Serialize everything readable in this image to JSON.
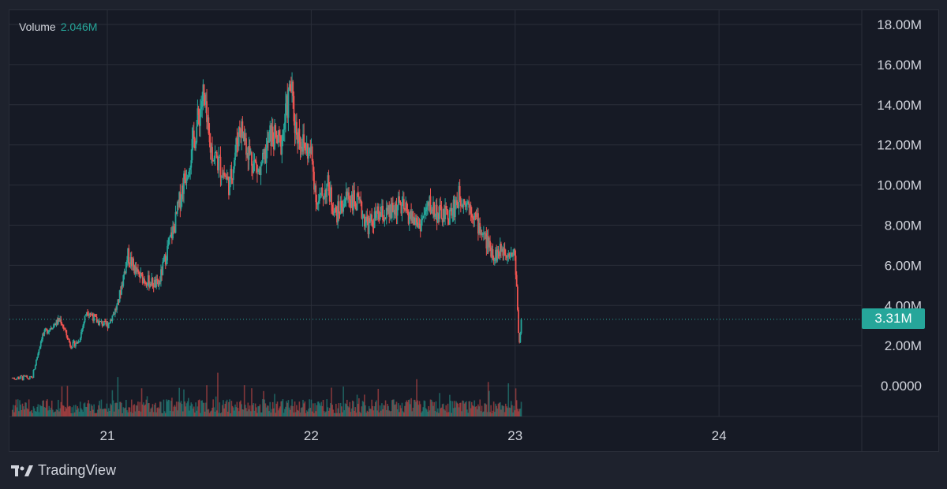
{
  "legend": {
    "label": "Volume",
    "value": "2.046M"
  },
  "current_value_label": "3.31M",
  "brand": {
    "name": "TradingView",
    "logo_icon": "tradingview-logo-icon"
  },
  "colors": {
    "up": "#26a69a",
    "down": "#ef5350",
    "background": "#161a25",
    "grid": "#2a2e39",
    "text": "#d1d4dc"
  },
  "chart_data": {
    "type": "candlestick",
    "title": "",
    "series_name": "Volume",
    "xlabel": "",
    "ylabel": "",
    "x_ticks": [
      "21",
      "22",
      "23",
      "24"
    ],
    "y_ticks": [
      "0.0000",
      "2.00M",
      "4.00M",
      "6.00M",
      "8.00M",
      "10.00M",
      "12.00M",
      "14.00M",
      "16.00M",
      "18.00M"
    ],
    "ylim": [
      -1.6,
      18
    ],
    "xlim": [
      20.52,
      24.7
    ],
    "current_value": 3.31,
    "points": [
      [
        20.53,
        0.4
      ],
      [
        20.58,
        0.4
      ],
      [
        20.63,
        0.35
      ],
      [
        20.68,
        2.5
      ],
      [
        20.73,
        3.0
      ],
      [
        20.77,
        3.3
      ],
      [
        20.82,
        2.0
      ],
      [
        20.86,
        2.2
      ],
      [
        20.9,
        3.8
      ],
      [
        20.95,
        3.2
      ],
      [
        21.0,
        3.0
      ],
      [
        21.05,
        4.0
      ],
      [
        21.1,
        6.5
      ],
      [
        21.15,
        5.5
      ],
      [
        21.2,
        5.2
      ],
      [
        21.25,
        5.0
      ],
      [
        21.3,
        7.0
      ],
      [
        21.33,
        8.0
      ],
      [
        21.37,
        10.0
      ],
      [
        21.42,
        12.0
      ],
      [
        21.47,
        14.5
      ],
      [
        21.5,
        12.0
      ],
      [
        21.55,
        11.0
      ],
      [
        21.6,
        10.0
      ],
      [
        21.65,
        13.0
      ],
      [
        21.7,
        11.5
      ],
      [
        21.75,
        10.5
      ],
      [
        21.8,
        12.5
      ],
      [
        21.85,
        12.0
      ],
      [
        21.9,
        15.0
      ],
      [
        21.92,
        13.0
      ],
      [
        21.96,
        12.0
      ],
      [
        22.0,
        11.5
      ],
      [
        22.03,
        9.0
      ],
      [
        22.08,
        10.0
      ],
      [
        22.12,
        8.5
      ],
      [
        22.18,
        9.5
      ],
      [
        22.23,
        9.0
      ],
      [
        22.28,
        8.0
      ],
      [
        22.33,
        8.5
      ],
      [
        22.38,
        8.5
      ],
      [
        22.43,
        9.0
      ],
      [
        22.48,
        8.5
      ],
      [
        22.53,
        8.0
      ],
      [
        22.58,
        9.0
      ],
      [
        22.63,
        8.5
      ],
      [
        22.68,
        8.5
      ],
      [
        22.73,
        9.5
      ],
      [
        22.78,
        9.0
      ],
      [
        22.82,
        8.0
      ],
      [
        22.87,
        7.0
      ],
      [
        22.9,
        6.5
      ],
      [
        22.94,
        6.8
      ],
      [
        22.97,
        6.7
      ],
      [
        23.0,
        6.5
      ],
      [
        23.02,
        2.0
      ],
      [
        23.03,
        3.31
      ]
    ],
    "volume_bars": true
  }
}
